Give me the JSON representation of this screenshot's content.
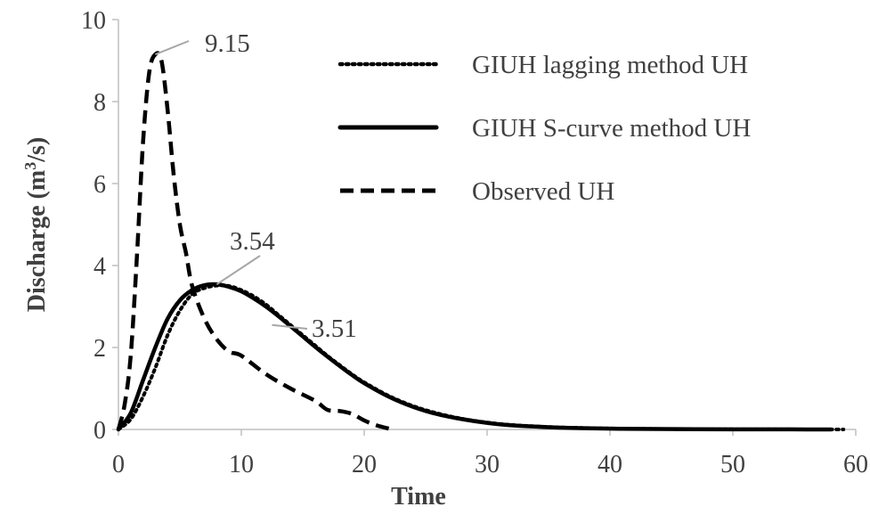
{
  "chart_data": {
    "type": "line",
    "xlabel": "Time",
    "ylabel_main": "Discharge (m",
    "ylabel_sup": "3",
    "ylabel_tail": "/s)",
    "xlim": [
      0,
      60
    ],
    "ylim": [
      0,
      10
    ],
    "x_ticks": [
      "0",
      "10",
      "20",
      "30",
      "40",
      "50",
      "60"
    ],
    "y_ticks": [
      "0",
      "2",
      "4",
      "6",
      "8",
      "10"
    ],
    "grid": false,
    "legend_position": "top-right",
    "series": [
      {
        "name": "GIUH lagging method UH",
        "style": "dotted",
        "x": [
          0,
          1,
          2,
          3,
          4,
          5,
          6,
          7,
          8,
          9,
          10,
          11,
          12,
          13,
          14,
          15,
          16,
          17,
          18,
          19,
          20,
          22,
          24,
          26,
          28,
          30,
          32,
          35,
          38,
          41,
          44,
          47,
          50,
          53,
          56,
          59
        ],
        "y": [
          0,
          0.25,
          0.8,
          1.5,
          2.3,
          2.9,
          3.3,
          3.45,
          3.51,
          3.5,
          3.4,
          3.25,
          3.05,
          2.8,
          2.55,
          2.3,
          2.05,
          1.8,
          1.57,
          1.35,
          1.15,
          0.82,
          0.57,
          0.39,
          0.26,
          0.17,
          0.11,
          0.06,
          0.035,
          0.02,
          0.012,
          0.007,
          0.004,
          0.002,
          0.001,
          0.0
        ]
      },
      {
        "name": "GIUH S-curve method UH",
        "style": "solid",
        "x": [
          0,
          1,
          2,
          3,
          4,
          5,
          6,
          7,
          8,
          9,
          10,
          11,
          12,
          13,
          14,
          15,
          16,
          17,
          18,
          19,
          20,
          22,
          24,
          26,
          28,
          30,
          32,
          35,
          38,
          41,
          44,
          47,
          50,
          53,
          56,
          58
        ],
        "y": [
          0,
          0.4,
          1.2,
          2.0,
          2.7,
          3.15,
          3.4,
          3.52,
          3.54,
          3.48,
          3.37,
          3.2,
          3.0,
          2.77,
          2.52,
          2.27,
          2.02,
          1.78,
          1.55,
          1.33,
          1.13,
          0.8,
          0.55,
          0.37,
          0.25,
          0.16,
          0.1,
          0.055,
          0.03,
          0.017,
          0.01,
          0.006,
          0.003,
          0.002,
          0.001,
          0.0
        ]
      },
      {
        "name": "Observed UH",
        "style": "dashed",
        "x": [
          0,
          0.5,
          1,
          1.5,
          2,
          2.5,
          3,
          3.5,
          4,
          4.5,
          5,
          5.5,
          6,
          7,
          8,
          9,
          10,
          12,
          14,
          16,
          17,
          18,
          19,
          20,
          21,
          22
        ],
        "y": [
          0,
          0.6,
          1.8,
          4.2,
          7.0,
          8.7,
          9.15,
          9.0,
          7.8,
          6.2,
          5.0,
          4.3,
          3.5,
          2.7,
          2.2,
          1.9,
          1.8,
          1.35,
          1.0,
          0.7,
          0.48,
          0.45,
          0.38,
          0.22,
          0.1,
          0.02
        ]
      }
    ],
    "annotations": [
      {
        "text": "9.15",
        "x": 3,
        "y": 9.15
      },
      {
        "text": "3.54",
        "x": 8,
        "y": 3.54
      },
      {
        "text": "3.51",
        "x": 12.5,
        "y": 2.55
      }
    ]
  }
}
